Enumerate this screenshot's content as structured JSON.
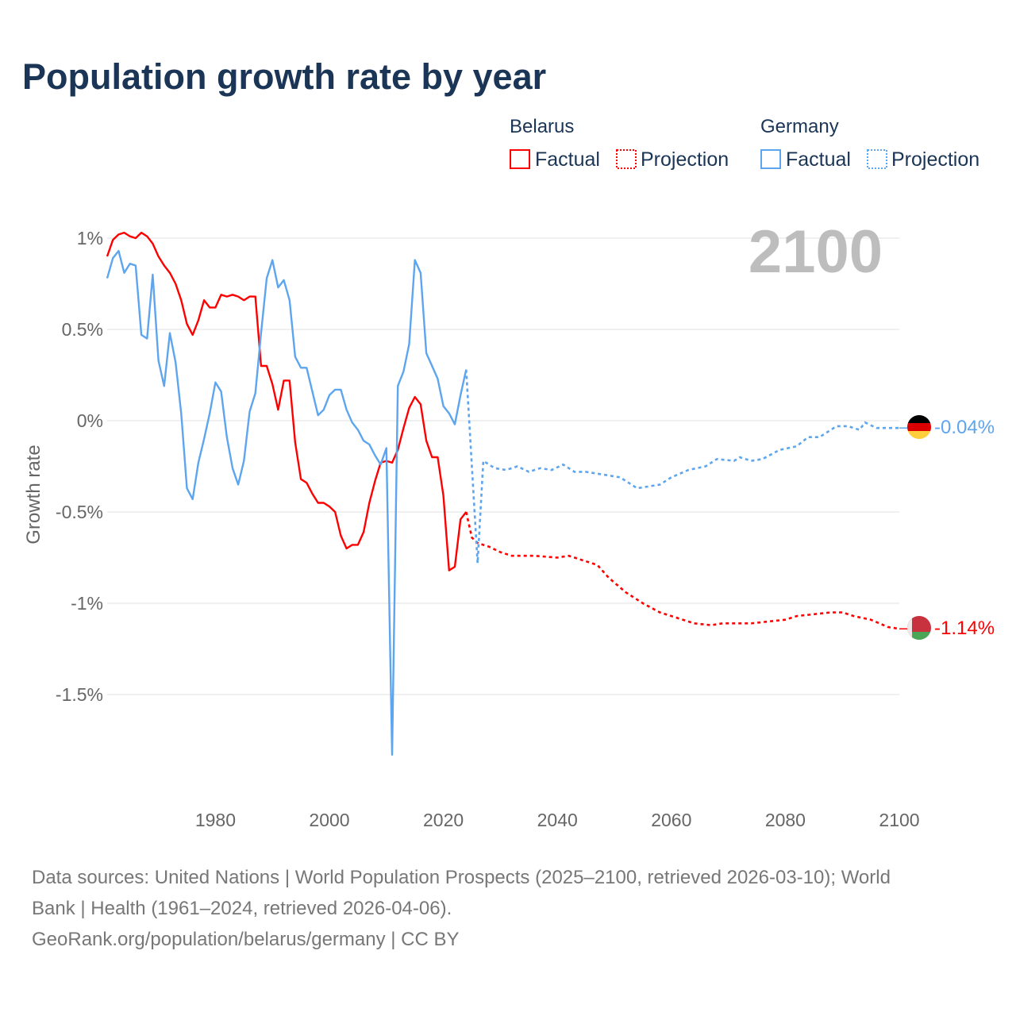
{
  "chart_data": {
    "type": "line",
    "title": "Population growth rate by year",
    "ylabel": "Growth rate",
    "xlabel": "",
    "current_year": "2100",
    "xlim": [
      1961,
      2100
    ],
    "ylim": [
      -1.9,
      1.1
    ],
    "x_ticks": [
      1980,
      2000,
      2020,
      2040,
      2060,
      2080,
      2100
    ],
    "y_ticks": [
      {
        "v": 1,
        "label": "1%"
      },
      {
        "v": 0.5,
        "label": "0.5%"
      },
      {
        "v": 0,
        "label": "0%"
      },
      {
        "v": -0.5,
        "label": "-0.5%"
      },
      {
        "v": -1,
        "label": "-1%"
      },
      {
        "v": -1.5,
        "label": "-1.5%"
      }
    ],
    "grid": true,
    "legend": {
      "placement": "top-right",
      "groups": [
        {
          "country": "Belarus",
          "factual": "Factual",
          "projection": "Projection"
        },
        {
          "country": "Germany",
          "factual": "Factual",
          "projection": "Projection"
        }
      ]
    },
    "series": [
      {
        "name": "Belarus",
        "color": "#ff0000",
        "end_label": "-1.14%",
        "factual_start": 1961,
        "factual": [
          0.9,
          0.99,
          1.02,
          1.03,
          1.01,
          1.0,
          1.03,
          1.01,
          0.97,
          0.9,
          0.85,
          0.81,
          0.75,
          0.66,
          0.53,
          0.47,
          0.55,
          0.66,
          0.62,
          0.62,
          0.69,
          0.68,
          0.69,
          0.68,
          0.66,
          0.68,
          0.68,
          0.3,
          0.3,
          0.2,
          0.06,
          0.22,
          0.22,
          -0.12,
          -0.32,
          -0.34,
          -0.4,
          -0.45,
          -0.45,
          -0.47,
          -0.5,
          -0.63,
          -0.7,
          -0.68,
          -0.68,
          -0.61,
          -0.45,
          -0.33,
          -0.23,
          -0.22,
          -0.23,
          -0.16,
          -0.04,
          0.07,
          0.13,
          0.09,
          -0.11,
          -0.2,
          -0.2,
          -0.41,
          -0.82,
          -0.8,
          -0.54,
          -0.5
        ],
        "projection": [
          [
            2024,
            -0.5
          ],
          [
            2025,
            -0.64
          ],
          [
            2026,
            -0.67
          ],
          [
            2028,
            -0.69
          ],
          [
            2030,
            -0.72
          ],
          [
            2032,
            -0.74
          ],
          [
            2036,
            -0.74
          ],
          [
            2040,
            -0.75
          ],
          [
            2042,
            -0.74
          ],
          [
            2045,
            -0.77
          ],
          [
            2047,
            -0.79
          ],
          [
            2049,
            -0.86
          ],
          [
            2052,
            -0.94
          ],
          [
            2055,
            -1.0
          ],
          [
            2058,
            -1.05
          ],
          [
            2061,
            -1.08
          ],
          [
            2064,
            -1.11
          ],
          [
            2067,
            -1.12
          ],
          [
            2069,
            -1.11
          ],
          [
            2072,
            -1.11
          ],
          [
            2074,
            -1.11
          ],
          [
            2077,
            -1.1
          ],
          [
            2080,
            -1.09
          ],
          [
            2082,
            -1.07
          ],
          [
            2085,
            -1.06
          ],
          [
            2088,
            -1.05
          ],
          [
            2090,
            -1.05
          ],
          [
            2092,
            -1.07
          ],
          [
            2095,
            -1.09
          ],
          [
            2098,
            -1.13
          ],
          [
            2100,
            -1.14
          ]
        ]
      },
      {
        "name": "Germany",
        "color": "#5da5ee",
        "end_label": "-0.04%",
        "factual_start": 1961,
        "factual": [
          0.78,
          0.89,
          0.93,
          0.81,
          0.86,
          0.85,
          0.47,
          0.45,
          0.8,
          0.33,
          0.19,
          0.48,
          0.32,
          0.04,
          -0.37,
          -0.43,
          -0.23,
          -0.1,
          0.04,
          0.21,
          0.16,
          -0.09,
          -0.26,
          -0.35,
          -0.22,
          0.05,
          0.15,
          0.48,
          0.78,
          0.88,
          0.73,
          0.77,
          0.66,
          0.35,
          0.29,
          0.29,
          0.16,
          0.03,
          0.06,
          0.14,
          0.17,
          0.17,
          0.06,
          -0.01,
          -0.05,
          -0.11,
          -0.13,
          -0.19,
          -0.24,
          -0.15,
          -1.83,
          0.19,
          0.27,
          0.42,
          0.88,
          0.81,
          0.37,
          0.3,
          0.23,
          0.08,
          0.04,
          -0.02,
          0.14,
          0.28
        ],
        "projection": [
          [
            2024,
            0.28
          ],
          [
            2026,
            -0.78
          ],
          [
            2027,
            -0.22
          ],
          [
            2029,
            -0.26
          ],
          [
            2031,
            -0.27
          ],
          [
            2033,
            -0.25
          ],
          [
            2035,
            -0.28
          ],
          [
            2037,
            -0.26
          ],
          [
            2039,
            -0.27
          ],
          [
            2041,
            -0.24
          ],
          [
            2043,
            -0.28
          ],
          [
            2045,
            -0.28
          ],
          [
            2047,
            -0.29
          ],
          [
            2049,
            -0.3
          ],
          [
            2051,
            -0.31
          ],
          [
            2054,
            -0.37
          ],
          [
            2056,
            -0.36
          ],
          [
            2058,
            -0.35
          ],
          [
            2060,
            -0.31
          ],
          [
            2063,
            -0.27
          ],
          [
            2066,
            -0.25
          ],
          [
            2068,
            -0.21
          ],
          [
            2071,
            -0.22
          ],
          [
            2072,
            -0.2
          ],
          [
            2074,
            -0.22
          ],
          [
            2076,
            -0.21
          ],
          [
            2079,
            -0.16
          ],
          [
            2082,
            -0.14
          ],
          [
            2084,
            -0.09
          ],
          [
            2086,
            -0.09
          ],
          [
            2089,
            -0.03
          ],
          [
            2091,
            -0.03
          ],
          [
            2093,
            -0.05
          ],
          [
            2094,
            -0.01
          ],
          [
            2096,
            -0.04
          ],
          [
            2100,
            -0.04
          ]
        ]
      }
    ]
  },
  "footer": {
    "line1": "Data sources: United Nations | World Population Prospects (2025–2100, retrieved 2026-03-10); World",
    "line2": "Bank | Health (1961–2024, retrieved 2026-04-06).",
    "line3": "GeoRank.org/population/belarus/germany | CC BY"
  }
}
